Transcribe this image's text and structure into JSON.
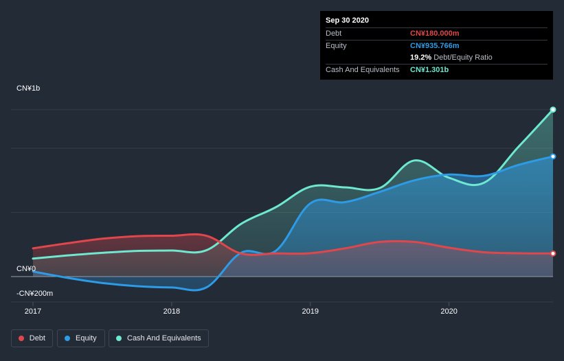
{
  "tooltip": {
    "date": "Sep 30 2020",
    "debt_label": "Debt",
    "debt_value": "CN¥180.000m",
    "equity_label": "Equity",
    "equity_value": "CN¥935.766m",
    "ratio_value": "19.2%",
    "ratio_label": "Debt/Equity Ratio",
    "cash_label": "Cash And Equivalents",
    "cash_value": "CN¥1.301b"
  },
  "legend": {
    "debt": "Debt",
    "equity": "Equity",
    "cash": "Cash And Equivalents"
  },
  "colors": {
    "debt": "#e0474c",
    "equity": "#2e9be6",
    "cash": "#6ee8cf",
    "background": "#232b37"
  },
  "chart_data": {
    "type": "area",
    "y_tick_labels": [
      "CN¥1b",
      "CN¥0",
      "-CN¥200m"
    ],
    "x_tick_labels": [
      "2017",
      "2018",
      "2019",
      "2020"
    ],
    "ylim": [
      -200,
      1350
    ],
    "xlim": [
      2017.0,
      2020.75
    ],
    "grid": true,
    "legend_position": "bottom-left",
    "series": [
      {
        "name": "Debt",
        "x": [
          2017.0,
          2017.25,
          2017.5,
          2017.75,
          2018.0,
          2018.25,
          2018.5,
          2018.75,
          2019.0,
          2019.25,
          2019.5,
          2019.75,
          2020.0,
          2020.25,
          2020.5,
          2020.75
        ],
        "y": [
          220,
          260,
          295,
          315,
          318,
          318,
          180,
          180,
          182,
          220,
          270,
          270,
          225,
          190,
          182,
          180
        ]
      },
      {
        "name": "Equity",
        "x": [
          2017.0,
          2017.25,
          2017.5,
          2017.75,
          2018.0,
          2018.25,
          2018.5,
          2018.75,
          2019.0,
          2019.25,
          2019.5,
          2019.75,
          2020.0,
          2020.25,
          2020.5,
          2020.75
        ],
        "y": [
          40,
          -10,
          -50,
          -75,
          -85,
          -85,
          185,
          200,
          570,
          580,
          660,
          750,
          795,
          785,
          870,
          936
        ]
      },
      {
        "name": "Cash And Equivalents",
        "x": [
          2017.0,
          2017.25,
          2017.5,
          2017.75,
          2018.0,
          2018.25,
          2018.5,
          2018.75,
          2019.0,
          2019.25,
          2019.5,
          2019.75,
          2020.0,
          2020.25,
          2020.5,
          2020.75
        ],
        "y": [
          140,
          165,
          185,
          200,
          203,
          205,
          410,
          540,
          700,
          695,
          690,
          905,
          770,
          730,
          1010,
          1301
        ]
      }
    ]
  }
}
